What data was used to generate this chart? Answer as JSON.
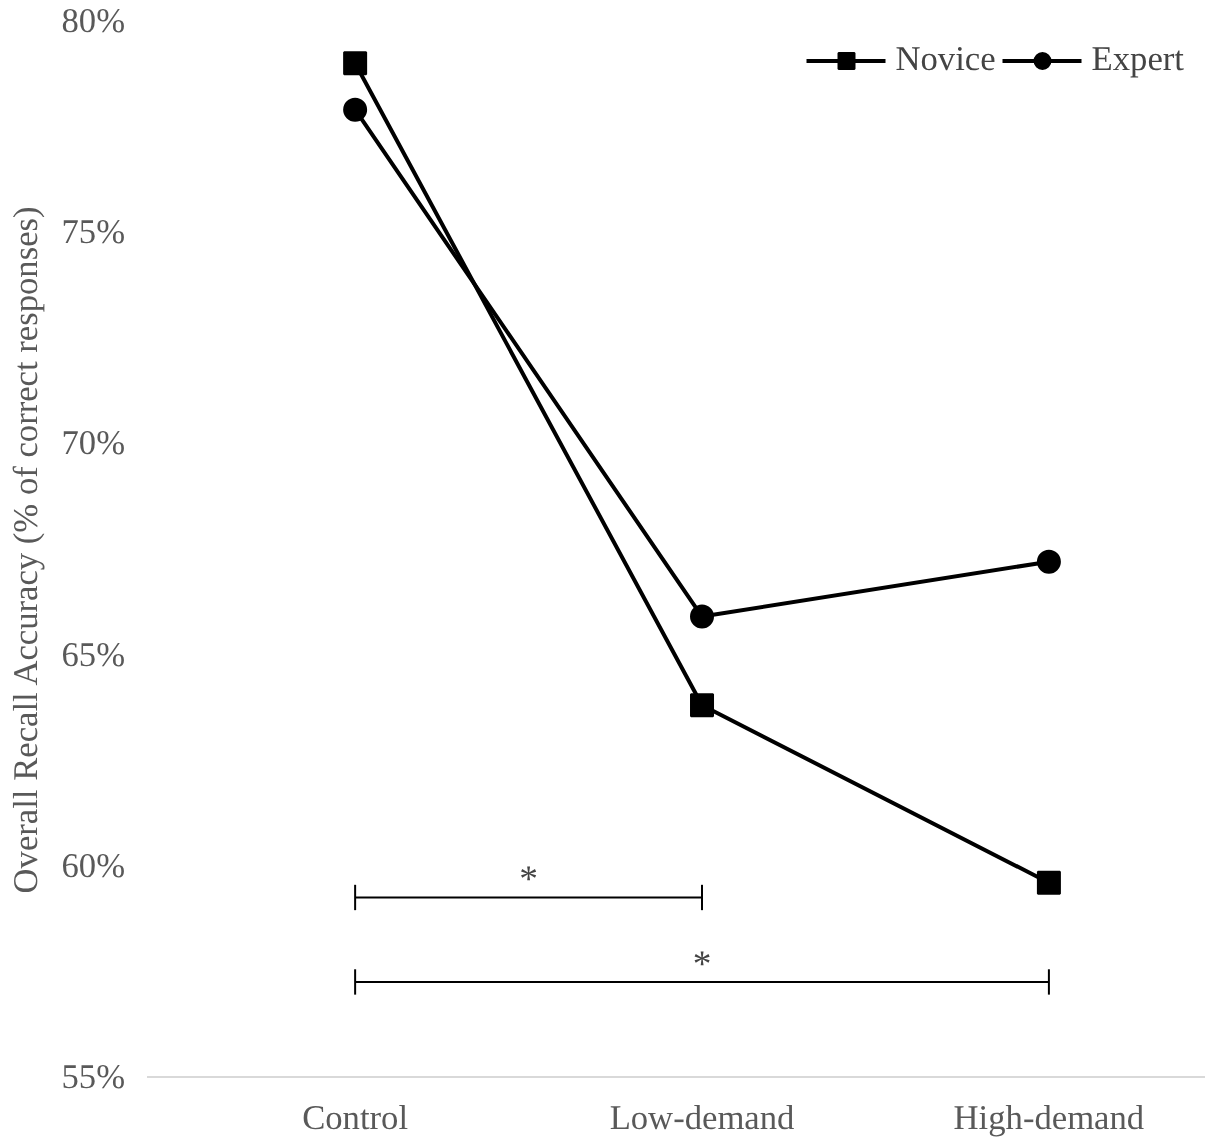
{
  "chart_data": {
    "type": "line",
    "ylabel": "Overall Recall Accuracy (% of correct responses)",
    "categories": [
      "Control",
      "Low-demand",
      "High-demand"
    ],
    "series": [
      {
        "name": "Novice",
        "color": "#000000",
        "marker": "square",
        "values": [
          79.0,
          63.8,
          59.6
        ]
      },
      {
        "name": "Expert",
        "color": "#000000",
        "marker": "circle",
        "values": [
          77.9,
          65.9,
          67.2
        ]
      }
    ],
    "ylim": [
      55,
      80
    ],
    "yticks": [
      {
        "value": 55,
        "label": "55%"
      },
      {
        "value": 60,
        "label": "60%"
      },
      {
        "value": 65,
        "label": "65%"
      },
      {
        "value": 70,
        "label": "70%"
      },
      {
        "value": 75,
        "label": "75%"
      },
      {
        "value": 80,
        "label": "80%"
      }
    ],
    "grid": false,
    "legend": "top right",
    "line_style": "solid",
    "annotations": [
      "*",
      "*"
    ]
  }
}
